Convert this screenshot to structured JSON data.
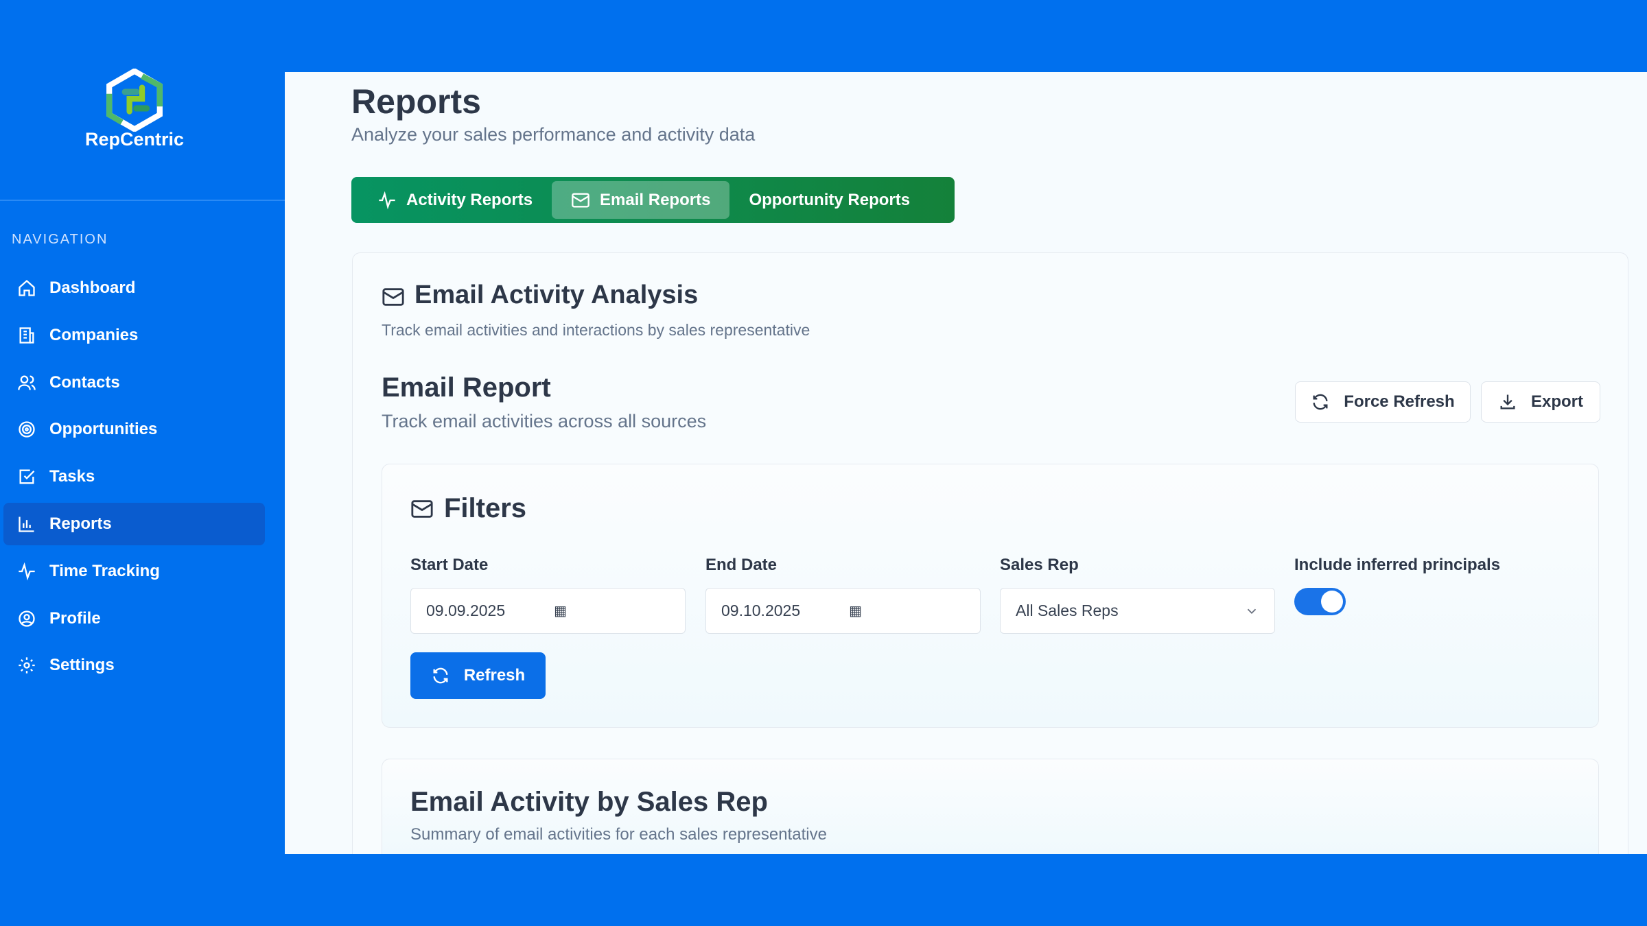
{
  "brand": {
    "name": "RepCentric"
  },
  "sidebar": {
    "heading": "NAVIGATION",
    "items": [
      {
        "label": "Dashboard",
        "icon": "home-icon"
      },
      {
        "label": "Companies",
        "icon": "building-icon"
      },
      {
        "label": "Contacts",
        "icon": "users-icon"
      },
      {
        "label": "Opportunities",
        "icon": "target-icon"
      },
      {
        "label": "Tasks",
        "icon": "checkbox-icon"
      },
      {
        "label": "Reports",
        "icon": "bar-chart-icon",
        "active": true
      },
      {
        "label": "Time Tracking",
        "icon": "activity-icon"
      },
      {
        "label": "Profile",
        "icon": "user-circle-icon"
      },
      {
        "label": "Settings",
        "icon": "gear-icon"
      }
    ]
  },
  "header": {
    "title": "Reports",
    "subtitle": "Analyze your sales performance and activity data"
  },
  "tabs": [
    {
      "label": "Activity Reports",
      "icon": "activity-icon"
    },
    {
      "label": "Email Reports",
      "icon": "mail-icon",
      "active": true
    },
    {
      "label": "Opportunity Reports"
    }
  ],
  "section": {
    "title": "Email Activity Analysis",
    "subtitle": "Track email activities and interactions by sales representative"
  },
  "report": {
    "title": "Email Report",
    "subtitle": "Track email activities across all sources",
    "force_refresh": "Force Refresh",
    "export": "Export"
  },
  "filters": {
    "title": "Filters",
    "start_label": "Start Date",
    "start_value": "09.09.2025",
    "end_label": "End Date",
    "end_value": "09.10.2025",
    "rep_label": "Sales Rep",
    "rep_value": "All Sales Reps",
    "toggle_label": "Include inferred principals",
    "toggle_on": true,
    "refresh": "Refresh"
  },
  "summary": {
    "title": "Email Activity by Sales Rep",
    "subtitle": "Summary of email activities for each sales representative"
  },
  "colors": {
    "primary": "#0070ee",
    "tabs": "#079462",
    "toggle": "#1a73e8"
  }
}
